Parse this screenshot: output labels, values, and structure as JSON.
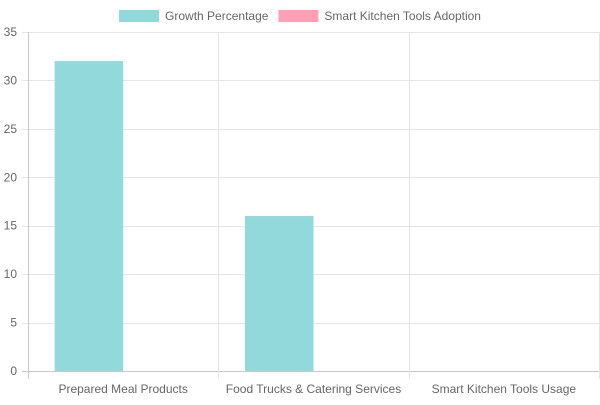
{
  "chart_data": {
    "type": "bar",
    "categories": [
      "Prepared Meal Products",
      "Food Trucks & Catering Services",
      "Smart Kitchen Tools Usage"
    ],
    "series": [
      {
        "name": "Growth Percentage",
        "values": [
          32,
          16,
          null
        ],
        "color": "#91d9da"
      },
      {
        "name": "Smart Kitchen Tools Adoption",
        "values": [
          null,
          null,
          null
        ],
        "color": "#ff9fb4"
      }
    ],
    "ylim": [
      0,
      35
    ],
    "y_ticks": [
      0,
      5,
      10,
      15,
      20,
      25,
      30,
      35
    ],
    "grid": true,
    "legend_position": "top-center"
  }
}
